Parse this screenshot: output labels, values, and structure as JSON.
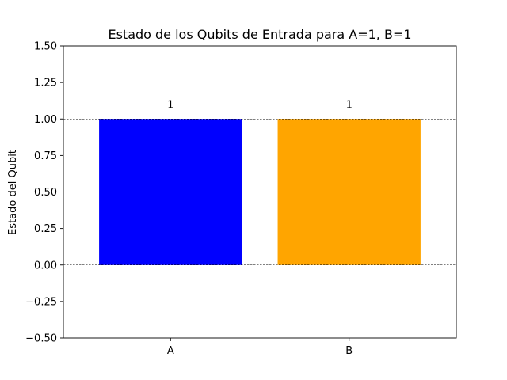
{
  "chart_data": {
    "type": "bar",
    "title": "Estado de los Qubits de Entrada para A=1, B=1",
    "xlabel": "",
    "ylabel": "Estado del Qubit",
    "categories": [
      "A",
      "B"
    ],
    "values": [
      1,
      1
    ],
    "data_labels": [
      "1",
      "1"
    ],
    "colors": [
      "#0000ff",
      "#ffa500"
    ],
    "ylim": [
      -0.5,
      1.5
    ],
    "yticks": [
      -0.5,
      -0.25,
      0.0,
      0.25,
      0.5,
      0.75,
      1.0,
      1.25,
      1.5
    ],
    "ytick_labels": [
      "−0.50",
      "−0.25",
      "0.00",
      "0.25",
      "0.50",
      "0.75",
      "1.00",
      "1.25",
      "1.50"
    ],
    "reference_lines": [
      0,
      1
    ],
    "grid": false,
    "legend": "none"
  }
}
